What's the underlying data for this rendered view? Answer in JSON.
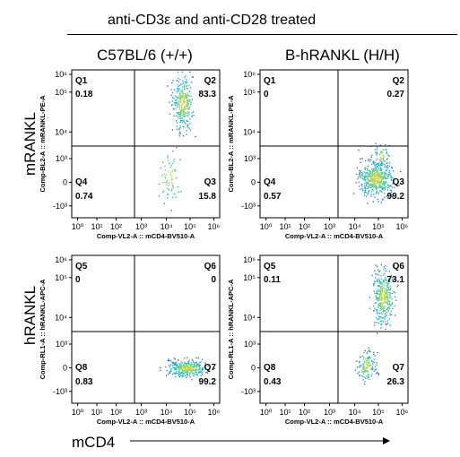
{
  "header": "anti-CD3ε and anti-CD28 treated",
  "column_headers": [
    "C57BL/6 (+/+)",
    "B-hRANKL (H/H)"
  ],
  "row_labels": [
    "mRANKL",
    "hRANKL"
  ],
  "xaxis_title": "mCD4",
  "colors": {
    "density_low": "#3a3acc",
    "density_mid": "#18b8c8",
    "density_high": "#e8e020",
    "axis": "#000000"
  },
  "chart_data": [
    {
      "type": "scatter",
      "title": "C57BL/6 (+/+)",
      "xlabel": "Comp-VL2-A :: mCD4-BV510-A",
      "ylabel": "Comp-BL2-A :: mRANKL-PE-A",
      "x_ticks": [
        "10⁰",
        "10¹",
        "10²",
        "10³",
        "10⁴",
        "10⁵",
        "10⁶"
      ],
      "y_ticks": [
        "10⁶",
        "10⁵",
        "10⁴",
        "10³",
        "0",
        "-10³"
      ],
      "quadrants": [
        {
          "name": "Q1",
          "value": "0.18"
        },
        {
          "name": "Q2",
          "value": "83.3"
        },
        {
          "name": "Q3",
          "value": "15.8"
        },
        {
          "name": "Q4",
          "value": "0.74"
        }
      ],
      "quadrant_order": [
        "top-left",
        "top-right",
        "bottom-right",
        "bottom-left"
      ]
    },
    {
      "type": "scatter",
      "title": "B-hRANKL (H/H)",
      "xlabel": "Comp-VL2-A :: mCD4-BV510-A",
      "ylabel": "Comp-BL2-A :: mRANKL-PE-A",
      "x_ticks": [
        "10⁰",
        "10¹",
        "10²",
        "10³",
        "10⁴",
        "10⁵",
        "10⁶"
      ],
      "y_ticks": [
        "10⁶",
        "10⁵",
        "10⁴",
        "10³",
        "0",
        "-10³"
      ],
      "quadrants": [
        {
          "name": "Q1",
          "value": "0"
        },
        {
          "name": "Q2",
          "value": "0.27"
        },
        {
          "name": "Q3",
          "value": "99.2"
        },
        {
          "name": "Q4",
          "value": "0.57"
        }
      ],
      "quadrant_order": [
        "top-left",
        "top-right",
        "bottom-right",
        "bottom-left"
      ]
    },
    {
      "type": "scatter",
      "title": "C57BL/6 (+/+)",
      "xlabel": "Comp-VL2-A :: mCD4-BV510-A",
      "ylabel": "Comp-RL1-A :: hRANKL-APC-A",
      "x_ticks": [
        "10⁰",
        "10¹",
        "10²",
        "10³",
        "10⁴",
        "10⁵",
        "10⁶"
      ],
      "y_ticks": [
        "10⁶",
        "10⁵",
        "10⁴",
        "10³",
        "0",
        "-10³"
      ],
      "quadrants": [
        {
          "name": "Q5",
          "value": "0"
        },
        {
          "name": "Q6",
          "value": "0"
        },
        {
          "name": "Q7",
          "value": "99.2"
        },
        {
          "name": "Q8",
          "value": "0.83"
        }
      ],
      "quadrant_order": [
        "top-left",
        "top-right",
        "bottom-right",
        "bottom-left"
      ]
    },
    {
      "type": "scatter",
      "title": "B-hRANKL (H/H)",
      "xlabel": "Comp-VL2-A :: mCD4-BV510-A",
      "ylabel": "Comp-RL1-A :: hRANKL-APC-A",
      "x_ticks": [
        "10⁰",
        "10¹",
        "10²",
        "10³",
        "10⁴",
        "10⁵",
        "10⁶"
      ],
      "y_ticks": [
        "10⁶",
        "10⁵",
        "10⁴",
        "10³",
        "0",
        "-10³"
      ],
      "quadrants": [
        {
          "name": "Q5",
          "value": "0.11"
        },
        {
          "name": "Q6",
          "value": "73.1"
        },
        {
          "name": "Q7",
          "value": "26.3"
        },
        {
          "name": "Q8",
          "value": "0.43"
        }
      ],
      "quadrant_order": [
        "top-left",
        "top-right",
        "bottom-right",
        "bottom-left"
      ]
    }
  ]
}
